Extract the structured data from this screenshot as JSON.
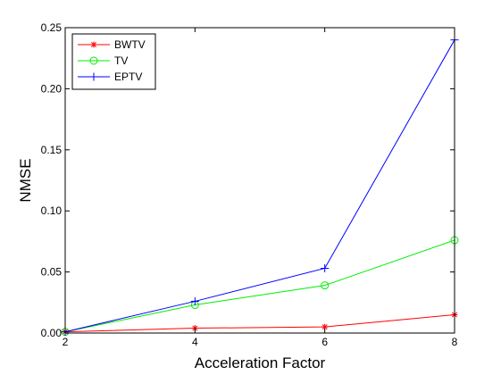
{
  "chart_data": {
    "type": "line",
    "title": "",
    "xlabel": "Acceleration Factor",
    "ylabel": "NMSE",
    "x": [
      2,
      4,
      6,
      8
    ],
    "xlim": [
      2,
      8
    ],
    "ylim": [
      0,
      0.25
    ],
    "xticks": [
      "2",
      "4",
      "6",
      "8"
    ],
    "yticks": [
      "0.00",
      "0.05",
      "0.10",
      "0.15",
      "0.20",
      "0.25"
    ],
    "grid": false,
    "legend_position": "top-left",
    "series": [
      {
        "name": "BWTV",
        "color": "#ff0000",
        "marker": "asterisk",
        "values": [
          0.001,
          0.004,
          0.005,
          0.015
        ]
      },
      {
        "name": "TV",
        "color": "#00ee00",
        "marker": "circle",
        "values": [
          0.001,
          0.023,
          0.039,
          0.076
        ]
      },
      {
        "name": "EPTV",
        "color": "#0000ff",
        "marker": "plus",
        "values": [
          0.001,
          0.026,
          0.053,
          0.24
        ]
      }
    ]
  }
}
